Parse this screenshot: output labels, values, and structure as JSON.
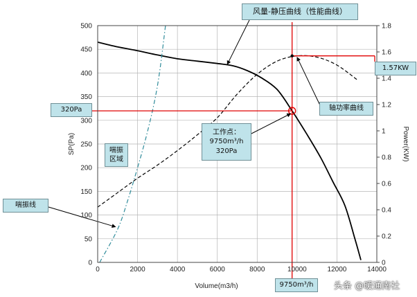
{
  "chart_data": {
    "type": "line",
    "xlabel": "Volume(m3/h)",
    "ylabel_left": "SP(Pa)",
    "ylabel_right": "Power(KW)",
    "xlim": [
      0,
      14000
    ],
    "ylim_left": [
      0,
      500
    ],
    "ylim_right": [
      0,
      1.8
    ],
    "x_ticks": [
      0,
      2000,
      4000,
      6000,
      8000,
      10000,
      12000,
      14000
    ],
    "y_left_ticks": [
      0,
      50,
      100,
      150,
      200,
      250,
      300,
      350,
      400,
      450,
      500
    ],
    "y_right_ticks": [
      0,
      0.2,
      0.4,
      0.6,
      0.8,
      1,
      1.2,
      1.4,
      1.6,
      1.8
    ],
    "grid": true,
    "series": [
      {
        "name": "风量-静压曲线（性能曲线）",
        "axis": "left",
        "style": "solid",
        "color": "#000000",
        "x": [
          0,
          1000,
          2000,
          3000,
          4000,
          5000,
          6000,
          6800,
          7500,
          8200,
          9000,
          9750,
          10500,
          11200,
          11800,
          12400,
          12900,
          13200
        ],
        "y": [
          465,
          455,
          447,
          438,
          430,
          425,
          420,
          415,
          405,
          390,
          365,
          320,
          270,
          220,
          170,
          120,
          50,
          5
        ]
      },
      {
        "name": "轴功率曲线",
        "axis": "right",
        "style": "dashed",
        "color": "#000000",
        "x": [
          0,
          1000,
          2000,
          3000,
          4000,
          5000,
          6000,
          7000,
          8000,
          9000,
          10000,
          11000,
          12000,
          13000
        ],
        "y": [
          0.42,
          0.53,
          0.64,
          0.74,
          0.85,
          0.97,
          1.1,
          1.28,
          1.43,
          1.53,
          1.57,
          1.56,
          1.5,
          1.39
        ]
      },
      {
        "name": "喘振线",
        "axis": "left",
        "style": "dashdot",
        "color": "#2e8b9a",
        "x": [
          100,
          1000,
          1500,
          2000,
          2400,
          2800,
          3100,
          3400
        ],
        "y": [
          0,
          70,
          130,
          200,
          260,
          330,
          400,
          500
        ]
      }
    ],
    "operating_point": {
      "x": 9750,
      "sp": 320,
      "power": 1.57
    },
    "reference_colors": {
      "guides": "#e00000",
      "callouts": "#bfe3ea"
    },
    "annotations": {
      "performance_curve": "风量-静压曲线（性能曲线）",
      "power_curve": "轴功率曲线",
      "surge_line": "喘振线",
      "surge_zone": "喘振\n区域",
      "operating_point_text": "工作点：\n9750m³/h\n320Pa",
      "sp_value": "320Pa",
      "power_value": "1.57KW",
      "volume_value": "9750m³/h"
    }
  },
  "watermark": "头条 @暖通南社"
}
